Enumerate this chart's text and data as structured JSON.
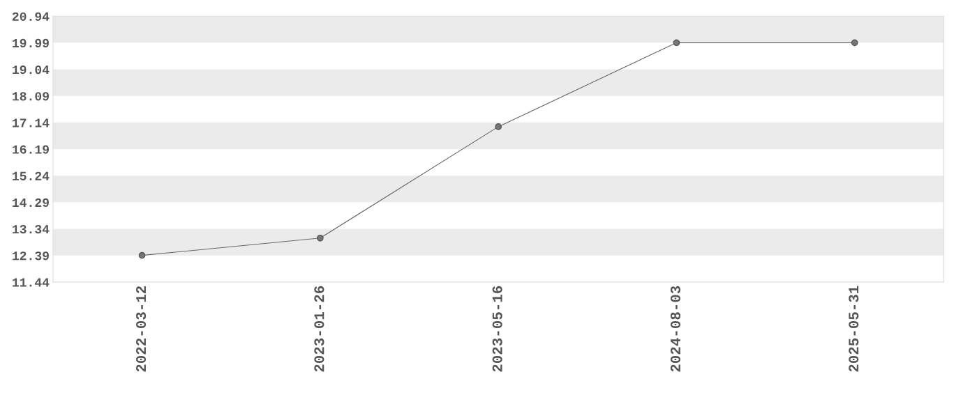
{
  "chart_data": {
    "type": "line",
    "categories": [
      "2022-03-12",
      "2023-01-26",
      "2023-05-16",
      "2024-08-03",
      "2025-05-31"
    ],
    "series": [
      {
        "color": "#666666",
        "values": [
          12.39,
          13.01,
          16.99,
          19.99,
          19.99
        ]
      }
    ],
    "ylim": [
      11.44,
      20.94
    ],
    "yticks": [
      11.44,
      12.39,
      13.34,
      14.29,
      15.24,
      16.19,
      17.14,
      18.09,
      19.04,
      19.99,
      20.94
    ],
    "bands": [
      {
        "axis": "y",
        "from": 19.99,
        "to": 20.94,
        "color": "#ebebeb"
      },
      {
        "axis": "y",
        "from": 18.09,
        "to": 19.04,
        "color": "#ebebeb"
      },
      {
        "axis": "y",
        "from": 16.19,
        "to": 17.14,
        "color": "#ebebeb"
      },
      {
        "axis": "y",
        "from": 14.29,
        "to": 15.24,
        "color": "#ebebeb"
      },
      {
        "axis": "y",
        "from": 12.39,
        "to": 13.34,
        "color": "#ebebeb"
      }
    ],
    "marker": "circle",
    "line_style": "solid"
  }
}
